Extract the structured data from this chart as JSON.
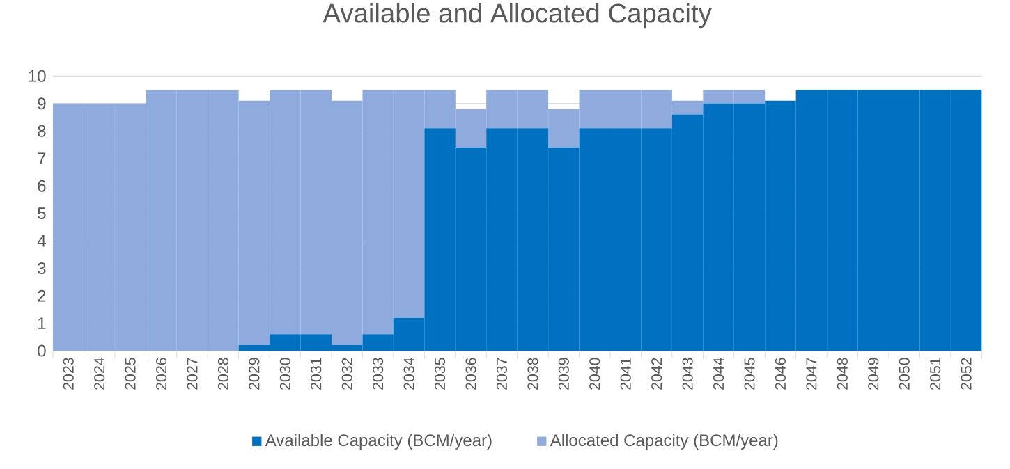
{
  "chart_data": {
    "type": "bar",
    "stacked": true,
    "title": "Available and Allocated Capacity",
    "categories": [
      "2023",
      "2024",
      "2025",
      "2026",
      "2027",
      "2028",
      "2029",
      "2030",
      "2031",
      "2032",
      "2033",
      "2034",
      "2035",
      "2036",
      "2037",
      "2038",
      "2039",
      "2040",
      "2041",
      "2042",
      "2043",
      "2044",
      "2045",
      "2046",
      "2047",
      "2048",
      "2049",
      "2050",
      "2051",
      "2052"
    ],
    "series": [
      {
        "name": "Available Capacity (BCM/year)",
        "color": "#0070c0",
        "values": [
          0,
          0,
          0,
          0,
          0,
          0,
          0.2,
          0.6,
          0.6,
          0.2,
          0.6,
          1.2,
          8.1,
          7.4,
          8.1,
          8.1,
          7.4,
          8.1,
          8.1,
          8.1,
          8.6,
          9.0,
          9.0,
          9.1,
          9.5,
          9.5,
          9.5,
          9.5,
          9.5,
          9.5
        ]
      },
      {
        "name": "Allocated Capacity (BCM/year)",
        "color": "#8faadc",
        "values": [
          9.0,
          9.0,
          9.0,
          9.5,
          9.5,
          9.5,
          8.9,
          8.9,
          8.9,
          8.9,
          8.9,
          8.3,
          1.4,
          1.4,
          1.4,
          1.4,
          1.4,
          1.4,
          1.4,
          1.4,
          0.5,
          0.5,
          0.5,
          0,
          0,
          0,
          0,
          0,
          0,
          0
        ]
      }
    ],
    "ylim": [
      0,
      10
    ],
    "yticks": [
      0,
      1,
      2,
      3,
      4,
      5,
      6,
      7,
      8,
      9,
      10
    ],
    "grid": "y",
    "legend": "bottom"
  }
}
